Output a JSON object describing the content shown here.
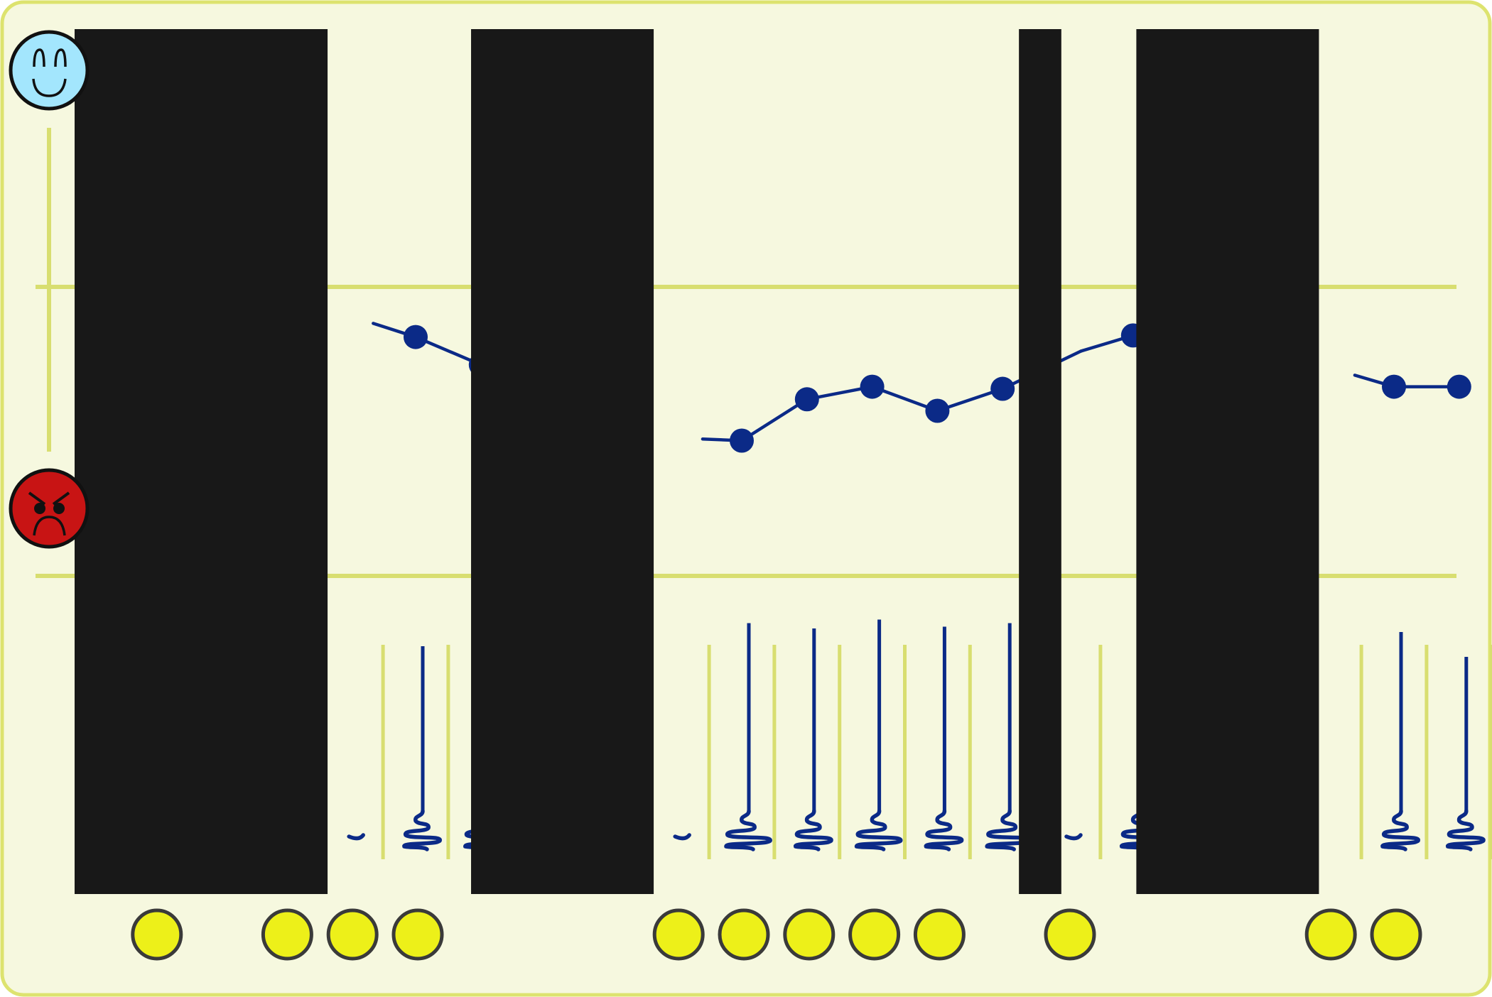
{
  "colors": {
    "background": "#f6f8df",
    "frame": "#dde36f",
    "gridline": "#d8de70",
    "series_line": "#0b2a87",
    "happy_face": "#a3e6fd",
    "angry_face": "#c81414",
    "face_outline": "#111111",
    "sun_marker": "#edf019",
    "sun_marker_outline": "#3a3a3a",
    "redaction": "#181818"
  },
  "icons": {
    "top": "happy-face-icon",
    "bottom": "angry-face-icon",
    "tendril": "squiggle-stem-icon",
    "marker": "yellow-circle-icon"
  },
  "chart_data": {
    "type": "line",
    "x_slots": 22,
    "y_scale": [
      "angry",
      "happy"
    ],
    "ylim": [
      0,
      10
    ],
    "mood_points": [
      {
        "slot": 5,
        "value": 7.17
      },
      {
        "slot": 6,
        "value": 6.64
      },
      {
        "slot": 10,
        "value": 5.19
      },
      {
        "slot": 11,
        "value": 5.98
      },
      {
        "slot": 12,
        "value": 6.22
      },
      {
        "slot": 13,
        "value": 5.76
      },
      {
        "slot": 14,
        "value": 6.18
      },
      {
        "slot": 16,
        "value": 7.2
      },
      {
        "slot": 20,
        "value": 6.22
      },
      {
        "slot": 21,
        "value": 6.22
      }
    ],
    "line_segments": [
      {
        "from": [
          4.35,
          7.43
        ],
        "to": [
          5,
          7.17
        ]
      },
      {
        "from": [
          5,
          7.17
        ],
        "to": [
          6,
          6.64
        ]
      },
      {
        "from": [
          6,
          6.64
        ],
        "to": [
          6.7,
          6.0
        ]
      },
      {
        "from": [
          9.4,
          5.22
        ],
        "to": [
          10,
          5.19
        ]
      },
      {
        "from": [
          10,
          5.19
        ],
        "to": [
          11,
          5.98
        ]
      },
      {
        "from": [
          11,
          5.98
        ],
        "to": [
          12,
          6.22
        ]
      },
      {
        "from": [
          12,
          6.22
        ],
        "to": [
          13,
          5.76
        ]
      },
      {
        "from": [
          13,
          5.76
        ],
        "to": [
          14,
          6.18
        ]
      },
      {
        "from": [
          14,
          6.18
        ],
        "to": [
          15.2,
          6.9
        ]
      },
      {
        "from": [
          15.2,
          6.9
        ],
        "to": [
          16,
          7.2
        ]
      },
      {
        "from": [
          16,
          7.2
        ],
        "to": [
          16.7,
          7.2
        ]
      },
      {
        "from": [
          19.4,
          6.44
        ],
        "to": [
          20,
          6.22
        ]
      },
      {
        "from": [
          20,
          6.22
        ],
        "to": [
          21,
          6.22
        ]
      }
    ],
    "stems": [
      {
        "slot": 5,
        "level": 0.6
      },
      {
        "slot": 6,
        "level": 0.76
      },
      {
        "slot": 10,
        "level": 0.73
      },
      {
        "slot": 11,
        "level": 0.7
      },
      {
        "slot": 12,
        "level": 0.75
      },
      {
        "slot": 13,
        "level": 0.71
      },
      {
        "slot": 14,
        "level": 0.73
      },
      {
        "slot": 16,
        "level": 0.7
      },
      {
        "slot": 20,
        "level": 0.68
      },
      {
        "slot": 21,
        "level": 0.54
      }
    ],
    "stem_stubs": [
      4.0,
      9.0,
      15.0
    ],
    "markers": [
      1,
      3,
      4,
      5,
      9,
      10,
      11,
      12,
      13,
      15,
      19,
      20
    ],
    "redactions": [
      {
        "from": 0.0,
        "to": 3.65
      },
      {
        "from": 5.85,
        "to": 8.65
      },
      {
        "from": 14.25,
        "to": 14.9
      },
      {
        "from": 16.05,
        "to": 18.85
      }
    ]
  }
}
